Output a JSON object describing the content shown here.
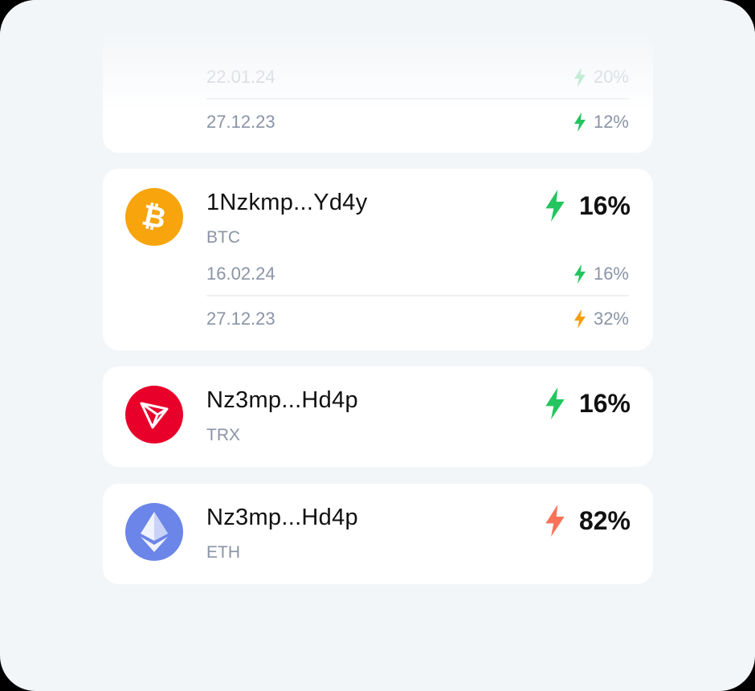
{
  "colors": {
    "up": "#22c55e",
    "mid": "#f59e0b",
    "down": "#f87259",
    "btc": "#f7a40d",
    "trx": "#e8002a",
    "eth": "#6b85e8"
  },
  "wallets": [
    {
      "history": [
        {
          "date": "22.01.24",
          "pct": "20%",
          "trend": "up"
        },
        {
          "date": "27.12.23",
          "pct": "12%",
          "trend": "up"
        }
      ]
    },
    {
      "address": "1Nzkmp...Yd4y",
      "coin": "BTC",
      "pct": "16%",
      "trend": "up",
      "icon": "bitcoin-icon",
      "history": [
        {
          "date": "16.02.24",
          "pct": "16%",
          "trend": "up"
        },
        {
          "date": "27.12.23",
          "pct": "32%",
          "trend": "mid"
        }
      ]
    },
    {
      "address": "Nz3mp...Hd4p",
      "coin": "TRX",
      "pct": "16%",
      "trend": "up",
      "icon": "tron-icon"
    },
    {
      "address": "Nz3mp...Hd4p",
      "coin": "ETH",
      "pct": "82%",
      "trend": "down",
      "icon": "ethereum-icon"
    }
  ]
}
